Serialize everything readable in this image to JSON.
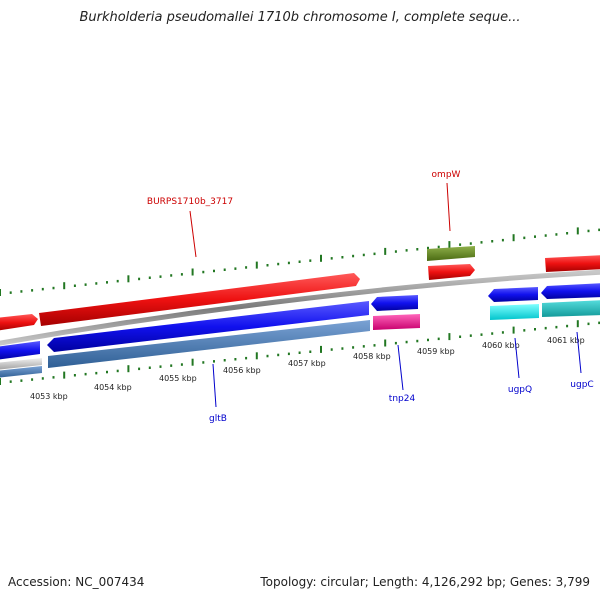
{
  "title": "Burkholderia pseudomallei 1710b chromosome I, complete seque...",
  "colors": {
    "forward_gene": "#ee1111",
    "reverse_gene": "#1111ee",
    "forward_label": "#cc0000",
    "reverse_label": "#0000cc",
    "tick": "#227722",
    "backbone": "#888888",
    "ompW_band": "#6b8e23",
    "tnp24": "#ee1188",
    "ugpQ_band": "#00e6ee",
    "cyan_band": "#22cccc",
    "steel_band": "#4f81bd",
    "gray_band": "#cccccc"
  },
  "kbp_labels": [
    "4053 kbp",
    "4054 kbp",
    "4055 kbp",
    "4056 kbp",
    "4057 kbp",
    "4058 kbp",
    "4059 kbp",
    "4060 kbp",
    "4061 kbp"
  ],
  "gene_labels": {
    "forward": [
      "BURPS1710b_3717",
      "ompW"
    ],
    "reverse": [
      "gltB",
      "tnp24",
      "ugpQ",
      "ugpC"
    ]
  },
  "footer": {
    "accession": "Accession: NC_007434",
    "topology": "Topology: circular; Length: 4,126,292 bp; Genes: 3,799"
  }
}
